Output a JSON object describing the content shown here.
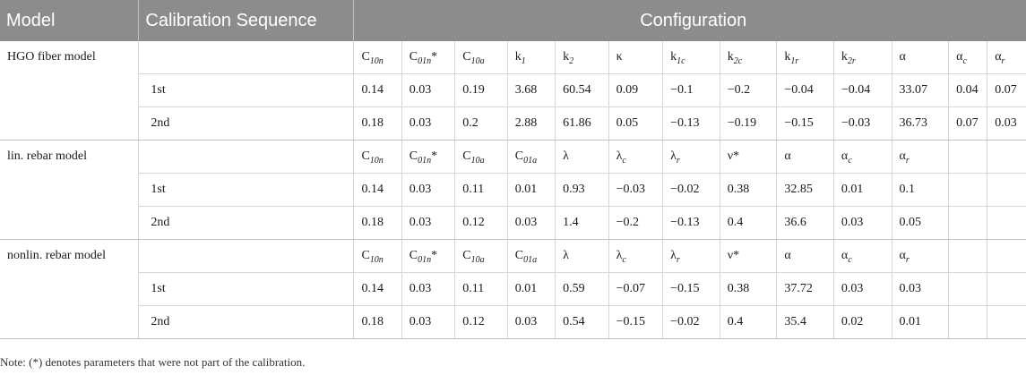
{
  "header": {
    "model": "Model",
    "sequence": "Calibration Sequence",
    "configuration": "Configuration"
  },
  "groups": [
    {
      "model": "HGO fiber model",
      "params": [
        [
          "C",
          "10n",
          ""
        ],
        [
          "C",
          "01n",
          "*"
        ],
        [
          "C",
          "10a",
          ""
        ],
        [
          "k",
          "1",
          ""
        ],
        [
          "k",
          "2",
          ""
        ],
        [
          "κ",
          "",
          ""
        ],
        [
          "k",
          "1c",
          ""
        ],
        [
          "k",
          "2c",
          ""
        ],
        [
          "k",
          "1r",
          ""
        ],
        [
          "k",
          "2r",
          ""
        ],
        [
          "α",
          "",
          ""
        ],
        [
          "α",
          "c",
          ""
        ],
        [
          "α",
          "r",
          ""
        ]
      ],
      "rows": [
        {
          "seq": "1st",
          "values": [
            "0.14",
            "0.03",
            "0.19",
            "3.68",
            "60.54",
            "0.09",
            "−0.1",
            "−0.2",
            "−0.04",
            "−0.04",
            "33.07",
            "0.04",
            "0.07"
          ]
        },
        {
          "seq": "2nd",
          "values": [
            "0.18",
            "0.03",
            "0.2",
            "2.88",
            "61.86",
            "0.05",
            "−0.13",
            "−0.19",
            "−0.15",
            "−0.03",
            "36.73",
            "0.07",
            "0.03"
          ]
        }
      ]
    },
    {
      "model": "lin. rebar model",
      "params": [
        [
          "C",
          "10n",
          ""
        ],
        [
          "C",
          "01n",
          "*"
        ],
        [
          "C",
          "10a",
          ""
        ],
        [
          "C",
          "01a",
          ""
        ],
        [
          "λ",
          "",
          ""
        ],
        [
          "λ",
          "c",
          ""
        ],
        [
          "λ",
          "r",
          ""
        ],
        [
          "ν",
          "",
          "*"
        ],
        [
          "α",
          "",
          ""
        ],
        [
          "α",
          "c",
          ""
        ],
        [
          "α",
          "r",
          ""
        ],
        [
          "",
          "",
          ""
        ],
        [
          "",
          "",
          ""
        ]
      ],
      "rows": [
        {
          "seq": "1st",
          "values": [
            "0.14",
            "0.03",
            "0.11",
            "0.01",
            "0.93",
            "−0.03",
            "−0.02",
            "0.38",
            "32.85",
            "0.01",
            "0.1",
            "",
            ""
          ]
        },
        {
          "seq": "2nd",
          "values": [
            "0.18",
            "0.03",
            "0.12",
            "0.03",
            "1.4",
            "−0.2",
            "−0.13",
            "0.4",
            "36.6",
            "0.03",
            "0.05",
            "",
            ""
          ]
        }
      ]
    },
    {
      "model": "nonlin. rebar model",
      "params": [
        [
          "C",
          "10n",
          ""
        ],
        [
          "C",
          "01n",
          "*"
        ],
        [
          "C",
          "10a",
          ""
        ],
        [
          "C",
          "01a",
          ""
        ],
        [
          "λ",
          "",
          ""
        ],
        [
          "λ",
          "c",
          ""
        ],
        [
          "λ",
          "r",
          ""
        ],
        [
          "ν",
          "",
          "*"
        ],
        [
          "α",
          "",
          ""
        ],
        [
          "α",
          "c",
          ""
        ],
        [
          "α",
          "r",
          ""
        ],
        [
          "",
          "",
          ""
        ],
        [
          "",
          "",
          ""
        ]
      ],
      "rows": [
        {
          "seq": "1st",
          "values": [
            "0.14",
            "0.03",
            "0.11",
            "0.01",
            "0.59",
            "−0.07",
            "−0.15",
            "0.38",
            "37.72",
            "0.03",
            "0.03",
            "",
            ""
          ]
        },
        {
          "seq": "2nd",
          "values": [
            "0.18",
            "0.03",
            "0.12",
            "0.03",
            "0.54",
            "−0.15",
            "−0.02",
            "0.4",
            "35.4",
            "0.02",
            "0.01",
            "",
            ""
          ]
        }
      ]
    }
  ],
  "note": "Note: (*) denotes parameters that were not part of the calibration."
}
